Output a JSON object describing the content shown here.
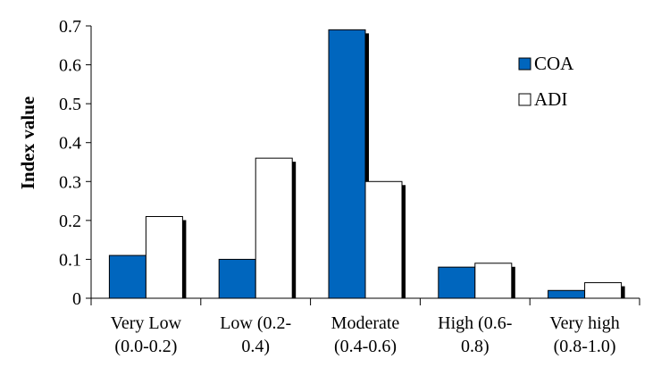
{
  "chart_data": {
    "type": "bar",
    "ylabel": "Index value",
    "xlabel": "",
    "ylim": [
      0,
      0.7
    ],
    "yticks": [
      "0",
      "0.1",
      "0.2",
      "0.3",
      "0.4",
      "0.5",
      "0.6",
      "0.7"
    ],
    "categories": [
      [
        "Very Low",
        "(0.0-0.2)"
      ],
      [
        "Low (0.2-",
        "0.4)"
      ],
      [
        "Moderate",
        "(0.4-0.6)"
      ],
      [
        "High (0.6-",
        "0.8)"
      ],
      [
        "Very high",
        "(0.8-1.0)"
      ]
    ],
    "series": [
      {
        "name": "COA",
        "color": "#0066BE",
        "values": [
          0.11,
          0.1,
          0.69,
          0.08,
          0.02
        ]
      },
      {
        "name": "ADI",
        "color": "#FFFFFF",
        "values": [
          0.21,
          0.36,
          0.3,
          0.09,
          0.04
        ]
      }
    ],
    "grid": false,
    "legend": "right"
  }
}
